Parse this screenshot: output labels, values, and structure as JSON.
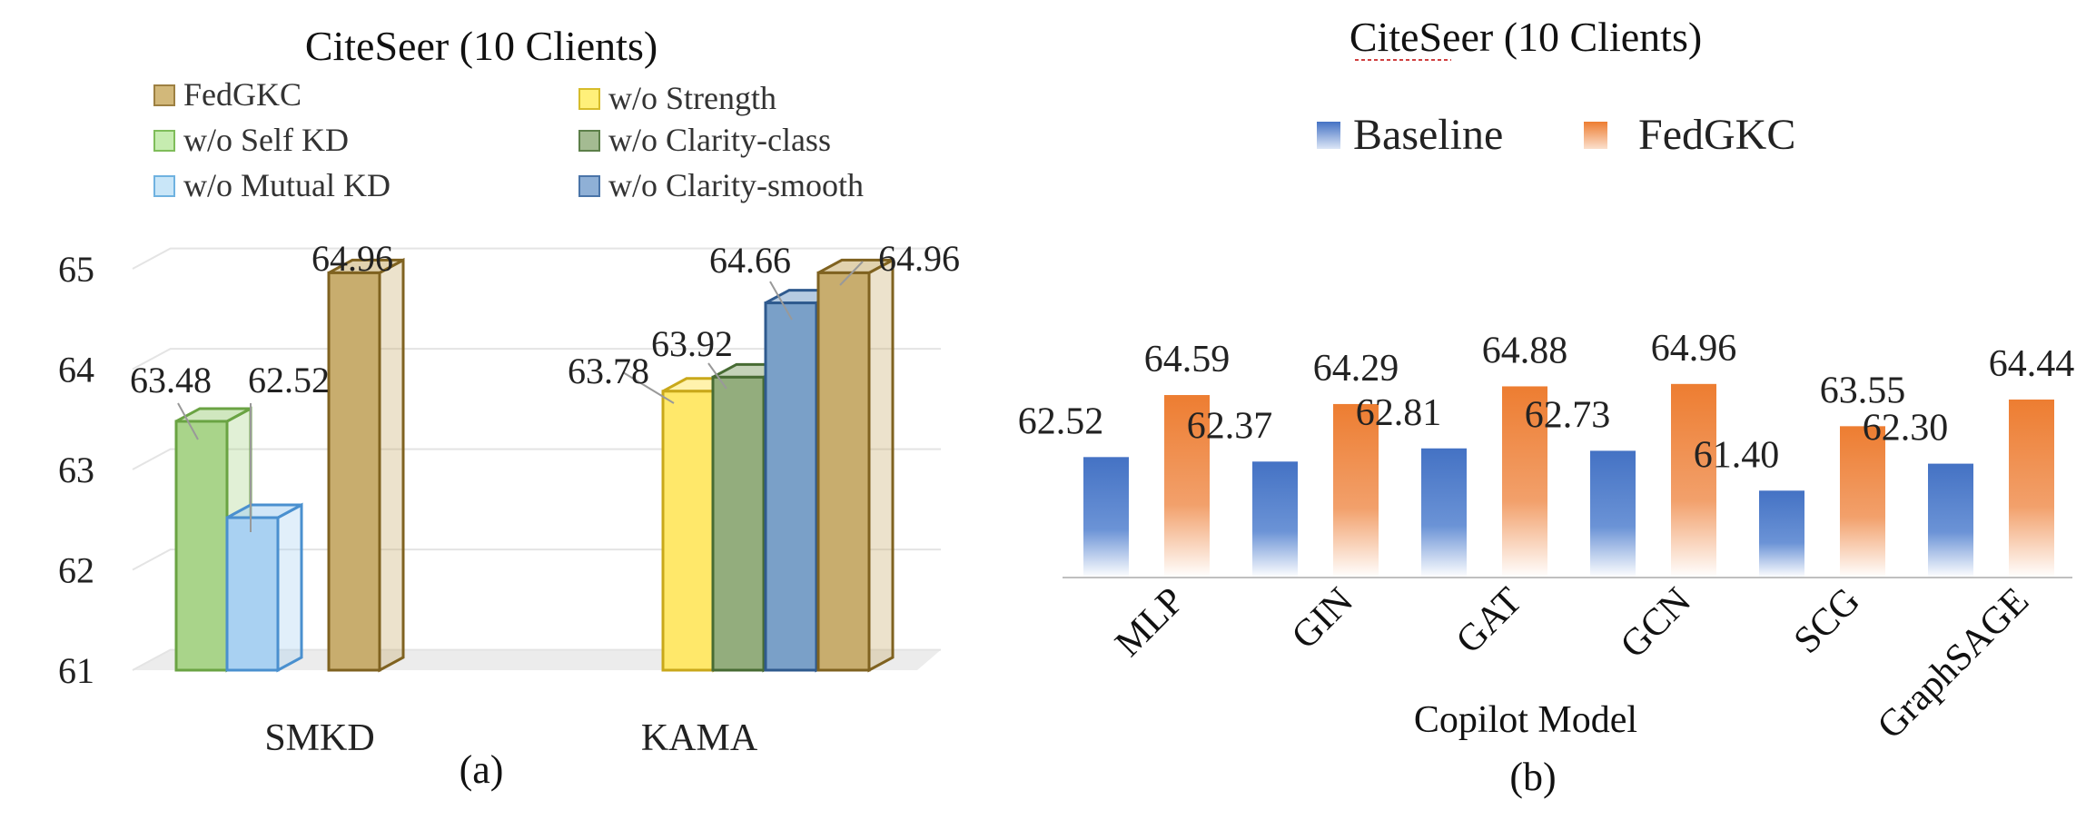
{
  "chart_data": [
    {
      "type": "bar",
      "title": "CiteSeer (10 Clients)",
      "caption": "(a)",
      "categories": [
        "SMKD",
        "KAMA"
      ],
      "yticks": [
        "61",
        "62",
        "63",
        "64",
        "65"
      ],
      "ylim": [
        61,
        65
      ],
      "grid": true,
      "legend": [
        "FedGKC",
        "w/o Strength",
        "w/o Self KD",
        "w/o Clarity-class",
        "w/o Mutual KD",
        "w/o Clarity-smooth"
      ],
      "series": [
        {
          "name": "w/o Self KD",
          "group": "SMKD",
          "value": 63.48,
          "label": "63.48",
          "color": "#a9d48a",
          "edge": "#6aa343"
        },
        {
          "name": "w/o Mutual KD",
          "group": "SMKD",
          "value": 62.52,
          "label": "62.52",
          "color": "#a9d1f2",
          "edge": "#4a90cf"
        },
        {
          "name": "FedGKC",
          "group": "SMKD",
          "value": 64.96,
          "label": "64.96",
          "color": "#c8ad6e",
          "edge": "#7f6220"
        },
        {
          "name": "w/o Strength",
          "group": "KAMA",
          "value": 63.78,
          "label": "63.78",
          "color": "#ffe86a",
          "edge": "#c9a81a"
        },
        {
          "name": "w/o Clarity-class",
          "group": "KAMA",
          "value": 63.92,
          "label": "63.92",
          "color": "#93ad7d",
          "edge": "#476b33"
        },
        {
          "name": "w/o Clarity-smooth",
          "group": "KAMA",
          "value": 64.66,
          "label": "64.66",
          "color": "#7aa0c8",
          "edge": "#2f5a8e"
        },
        {
          "name": "FedGKC",
          "group": "KAMA",
          "value": 64.96,
          "label": "64.96",
          "color": "#c8ad6e",
          "edge": "#7f6220"
        }
      ]
    },
    {
      "type": "bar",
      "title": "CiteSeer (10 Clients)",
      "caption": "(b)",
      "xlabel": "Copilot Model",
      "categories": [
        "MLP",
        "GIN",
        "GAT",
        "GCN",
        "SCG",
        "GraphSAGE"
      ],
      "legend": [
        "Baseline",
        "FedGKC"
      ],
      "series": [
        {
          "name": "Baseline",
          "color": "#4472c4",
          "values": [
            62.52,
            62.37,
            62.81,
            62.73,
            61.4,
            62.3
          ],
          "labels": [
            "62.52",
            "62.37",
            "62.81",
            "62.73",
            "61.40",
            "62.30"
          ]
        },
        {
          "name": "FedGKC",
          "color": "#ed7d31",
          "values": [
            64.59,
            64.29,
            64.88,
            64.96,
            63.55,
            64.44
          ],
          "labels": [
            "64.59",
            "64.29",
            "64.88",
            "64.96",
            "63.55",
            "64.44"
          ]
        }
      ]
    }
  ]
}
